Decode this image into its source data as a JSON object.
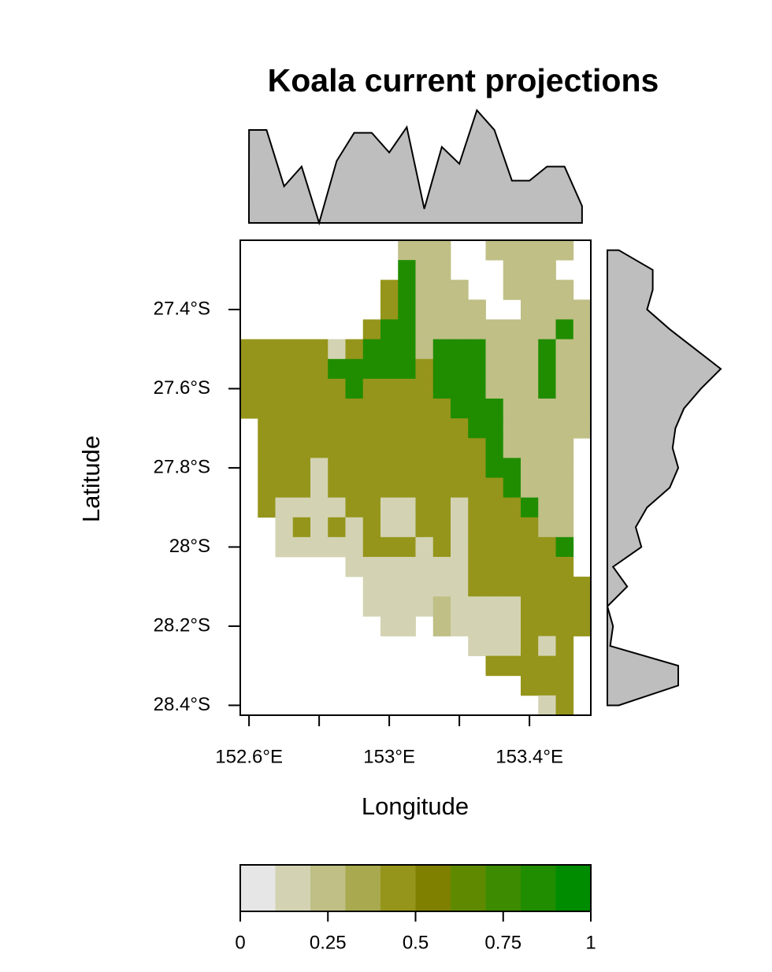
{
  "chart_data": {
    "type": "raster",
    "title": "Koala current projections",
    "xlabel": "Longitude",
    "ylabel": "Latitude",
    "xlim": [
      152.575,
      153.575
    ],
    "ylim": [
      -28.425,
      -27.225
    ],
    "xticks": [
      {
        "value": 152.6,
        "label": "152.6°E"
      },
      {
        "value": 152.8,
        "label": null
      },
      {
        "value": 153,
        "label": "153°E"
      },
      {
        "value": 153.2,
        "label": null
      },
      {
        "value": 153.4,
        "label": "153.4°E"
      }
    ],
    "yticks": [
      {
        "value": -27.4,
        "label": "27.4°S"
      },
      {
        "value": -27.6,
        "label": "27.6°S"
      },
      {
        "value": -27.8,
        "label": "27.8°S"
      },
      {
        "value": -28,
        "label": "28°S"
      },
      {
        "value": -28.2,
        "label": "28.2°S"
      },
      {
        "value": -28.4,
        "label": "28.4°S"
      }
    ],
    "breaks": [
      0,
      0.1,
      0.2,
      0.3,
      0.4,
      0.5,
      0.6,
      0.7,
      0.8,
      0.9,
      1
    ],
    "colors": [
      "#e6e6e6",
      "#d3d3b3",
      "#bfbf86",
      "#a9a94f",
      "#95951b",
      "#808000",
      "#5f8a00",
      "#3d8b00",
      "#208d00",
      "#008c00"
    ],
    "colorbar_ticks": [
      0,
      0.25,
      0.5,
      0.75,
      1
    ],
    "margin_color": "#bebebe",
    "top_margin": {
      "lim": [
        0.2,
        0.6
      ],
      "values": [
        0.53,
        0.53,
        0.33,
        0.4,
        0.2,
        0.42,
        0.52,
        0.52,
        0.45,
        0.54,
        0.25,
        0.47,
        0.41,
        0.6,
        0.53,
        0.35,
        0.35,
        0.4,
        0.4,
        0.26
      ]
    },
    "right_margin": {
      "lim": [
        0.2,
        0.6
      ],
      "values": [
        0.24,
        0.36,
        0.36,
        0.34,
        0.42,
        0.51,
        0.6,
        0.53,
        0.47,
        0.44,
        0.43,
        0.45,
        0.42,
        0.34,
        0.3,
        0.32,
        0.22,
        0.27,
        0.2,
        0.22,
        0.21,
        0.45,
        0.45,
        0.24
      ]
    },
    "values": [
      [
        null,
        null,
        null,
        null,
        null,
        null,
        null,
        null,
        null,
        0.25,
        0.25,
        0.25,
        null,
        null,
        0.25,
        0.25,
        0.25,
        0.25,
        0.25,
        null
      ],
      [
        null,
        null,
        null,
        null,
        null,
        null,
        null,
        null,
        null,
        0.85,
        0.25,
        0.25,
        null,
        null,
        null,
        0.25,
        0.25,
        0.25,
        null,
        null
      ],
      [
        null,
        null,
        null,
        null,
        null,
        null,
        null,
        null,
        0.45,
        0.85,
        0.25,
        0.25,
        0.25,
        null,
        null,
        0.25,
        0.25,
        0.25,
        0.25,
        null
      ],
      [
        null,
        null,
        null,
        null,
        null,
        null,
        null,
        null,
        0.45,
        0.85,
        0.25,
        0.25,
        0.25,
        0.25,
        null,
        null,
        0.25,
        0.25,
        0.25,
        0.25
      ],
      [
        null,
        null,
        null,
        null,
        null,
        null,
        null,
        0.45,
        0.85,
        0.85,
        0.25,
        0.25,
        0.25,
        0.25,
        0.25,
        0.25,
        0.25,
        0.25,
        0.85,
        0.25
      ],
      [
        0.45,
        0.45,
        0.45,
        0.45,
        0.45,
        0.15,
        0.45,
        0.85,
        0.85,
        0.85,
        0.25,
        0.85,
        0.85,
        0.85,
        0.25,
        0.25,
        0.25,
        0.85,
        0.25,
        0.25
      ],
      [
        0.45,
        0.45,
        0.45,
        0.45,
        0.45,
        0.85,
        0.85,
        0.85,
        0.85,
        0.85,
        0.45,
        0.85,
        0.85,
        0.85,
        0.25,
        0.25,
        0.25,
        0.85,
        0.25,
        0.25
      ],
      [
        0.45,
        0.45,
        0.45,
        0.45,
        0.45,
        0.45,
        0.85,
        0.45,
        0.45,
        0.45,
        0.45,
        0.85,
        0.85,
        0.85,
        0.25,
        0.25,
        0.25,
        0.85,
        0.25,
        0.25
      ],
      [
        0.45,
        0.45,
        0.45,
        0.45,
        0.45,
        0.45,
        0.45,
        0.45,
        0.45,
        0.45,
        0.45,
        0.45,
        0.85,
        0.85,
        0.85,
        0.25,
        0.25,
        0.25,
        0.25,
        0.25
      ],
      [
        null,
        0.45,
        0.45,
        0.45,
        0.45,
        0.45,
        0.45,
        0.45,
        0.45,
        0.45,
        0.45,
        0.45,
        0.45,
        0.85,
        0.85,
        0.25,
        0.25,
        0.25,
        0.25,
        0.25
      ],
      [
        null,
        0.45,
        0.45,
        0.45,
        0.45,
        0.45,
        0.45,
        0.45,
        0.45,
        0.45,
        0.45,
        0.45,
        0.45,
        0.45,
        0.85,
        0.25,
        0.25,
        0.25,
        0.25,
        null
      ],
      [
        null,
        0.45,
        0.45,
        0.45,
        0.15,
        0.45,
        0.45,
        0.45,
        0.45,
        0.45,
        0.45,
        0.45,
        0.45,
        0.45,
        0.85,
        0.85,
        0.25,
        0.25,
        0.25,
        null
      ],
      [
        null,
        0.45,
        0.45,
        0.45,
        0.15,
        0.45,
        0.45,
        0.45,
        0.45,
        0.45,
        0.45,
        0.45,
        0.45,
        0.45,
        0.45,
        0.85,
        0.25,
        0.25,
        0.25,
        null
      ],
      [
        null,
        0.45,
        0.15,
        0.15,
        0.15,
        0.15,
        0.45,
        0.45,
        0.15,
        0.15,
        0.45,
        0.45,
        0.15,
        0.45,
        0.45,
        0.45,
        0.85,
        0.25,
        0.25,
        null
      ],
      [
        null,
        null,
        0.15,
        0.45,
        0.15,
        0.45,
        0.15,
        0.45,
        0.15,
        0.15,
        0.45,
        0.45,
        0.15,
        0.45,
        0.45,
        0.45,
        0.45,
        0.25,
        0.25,
        null
      ],
      [
        null,
        null,
        0.15,
        0.15,
        0.15,
        0.15,
        0.15,
        0.45,
        0.45,
        0.45,
        0.15,
        0.45,
        0.15,
        0.45,
        0.45,
        0.45,
        0.45,
        0.45,
        0.85,
        null
      ],
      [
        null,
        null,
        null,
        null,
        null,
        null,
        0.15,
        0.15,
        0.15,
        0.15,
        0.15,
        0.15,
        0.15,
        0.45,
        0.45,
        0.45,
        0.45,
        0.45,
        0.45,
        null
      ],
      [
        null,
        null,
        null,
        null,
        null,
        null,
        null,
        0.15,
        0.15,
        0.15,
        0.15,
        0.15,
        0.15,
        0.45,
        0.45,
        0.45,
        0.45,
        0.45,
        0.45,
        0.45
      ],
      [
        null,
        null,
        null,
        null,
        null,
        null,
        null,
        0.15,
        0.15,
        0.15,
        0.15,
        0.25,
        0.15,
        0.15,
        0.15,
        0.15,
        0.45,
        0.45,
        0.45,
        0.45
      ],
      [
        null,
        null,
        null,
        null,
        null,
        null,
        null,
        null,
        0.15,
        0.15,
        null,
        0.25,
        0.15,
        0.15,
        0.15,
        0.15,
        0.45,
        0.45,
        0.45,
        0.45
      ],
      [
        null,
        null,
        null,
        null,
        null,
        null,
        null,
        null,
        null,
        null,
        null,
        null,
        null,
        0.15,
        0.15,
        0.15,
        0.45,
        0.15,
        0.45,
        null
      ],
      [
        null,
        null,
        null,
        null,
        null,
        null,
        null,
        null,
        null,
        null,
        null,
        null,
        null,
        null,
        0.45,
        0.45,
        0.45,
        0.45,
        0.45,
        null
      ],
      [
        null,
        null,
        null,
        null,
        null,
        null,
        null,
        null,
        null,
        null,
        null,
        null,
        null,
        null,
        null,
        null,
        0.45,
        0.45,
        0.45,
        null
      ],
      [
        null,
        null,
        null,
        null,
        null,
        null,
        null,
        null,
        null,
        null,
        null,
        null,
        null,
        null,
        null,
        null,
        null,
        0.15,
        0.45,
        null
      ]
    ]
  }
}
